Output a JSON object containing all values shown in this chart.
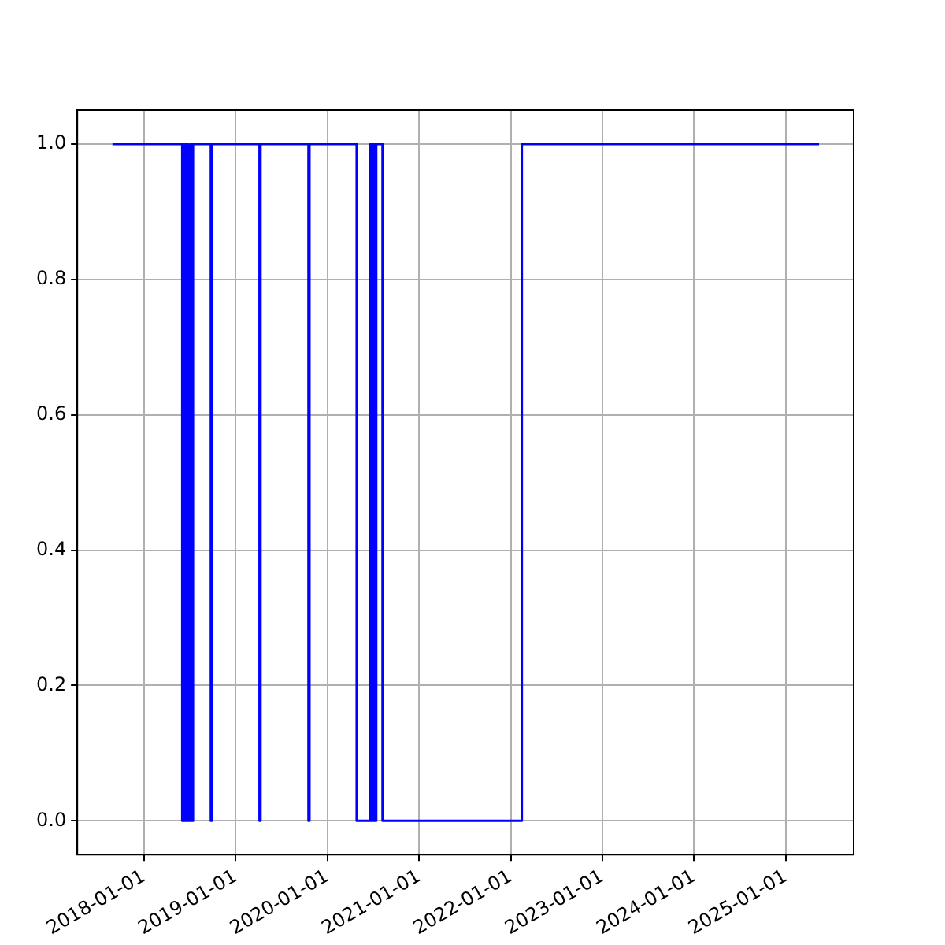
{
  "chart_data": {
    "type": "step",
    "x": [
      "2017-08-28",
      "2018-06-02",
      "2018-06-10",
      "2018-06-14",
      "2018-06-22",
      "2018-06-26",
      "2018-07-05",
      "2018-07-09",
      "2018-07-15",
      "2018-09-24",
      "2018-09-28",
      "2019-04-06",
      "2019-04-10",
      "2019-10-18",
      "2019-10-22",
      "2020-04-27",
      "2020-06-21",
      "2020-06-27",
      "2020-07-03",
      "2020-07-08",
      "2020-07-14",
      "2020-08-08",
      "2022-02-14",
      "2025-05-13"
    ],
    "series": [
      {
        "color": "#0000ff",
        "values": [
          1,
          0,
          1,
          0,
          1,
          0,
          1,
          0,
          1,
          0,
          1,
          0,
          1,
          0,
          1,
          0,
          1,
          0,
          1,
          0,
          1,
          0,
          1,
          1
        ]
      }
    ],
    "xlim": [
      "2017-04-10",
      "2025-09-28"
    ],
    "xticks": [
      "2018-01-01",
      "2019-01-01",
      "2020-01-01",
      "2021-01-01",
      "2022-01-01",
      "2023-01-01",
      "2024-01-01",
      "2025-01-01"
    ],
    "ylim": [
      -0.05,
      1.05
    ],
    "yticks": [
      {
        "value": 0,
        "label": "0.0"
      },
      {
        "value": 0.2,
        "label": "0.2"
      },
      {
        "value": 0.4,
        "label": "0.4"
      },
      {
        "value": 0.6,
        "label": "0.6"
      },
      {
        "value": 0.8,
        "label": "0.8"
      },
      {
        "value": 1,
        "label": "1.0"
      }
    ],
    "grid": true,
    "legend": false,
    "line_style": "solid",
    "marker": "none"
  }
}
